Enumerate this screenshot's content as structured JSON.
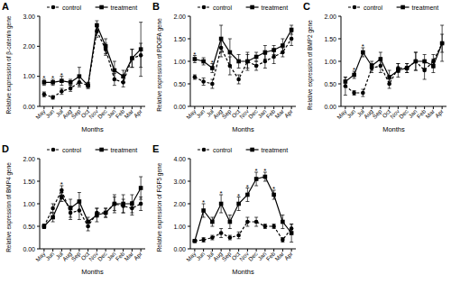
{
  "chart_data": [
    {
      "type": "line",
      "title": "A",
      "x_label": "Months",
      "y_label": "Relative expression of β-catenin gene",
      "categories": [
        "May",
        "Jun",
        "Jul",
        "Aug",
        "Sep",
        "Oct",
        "Nov",
        "Dec",
        "Jan",
        "Feb",
        "Mar",
        "Apr"
      ],
      "series": [
        {
          "name": "control",
          "color": "#000000",
          "line_style": "dashed",
          "marker": "circle",
          "values": [
            0.4,
            0.3,
            0.5,
            0.6,
            0.8,
            0.7,
            2.5,
            1.9,
            0.9,
            0.8,
            1.6,
            1.7
          ],
          "errors": [
            0.08,
            0.06,
            0.1,
            0.1,
            0.15,
            0.1,
            0.2,
            0.2,
            0.2,
            0.15,
            0.3,
            0.4
          ]
        },
        {
          "name": "treatment",
          "color": "#000000",
          "line_style": "solid",
          "marker": "square",
          "values": [
            0.8,
            0.8,
            0.85,
            0.8,
            1.0,
            0.7,
            2.7,
            2.0,
            1.2,
            1.0,
            1.6,
            1.9
          ],
          "errors": [
            0.1,
            0.1,
            0.15,
            0.1,
            0.3,
            0.1,
            0.15,
            0.25,
            0.3,
            0.2,
            0.3,
            0.9
          ]
        }
      ],
      "annotations": [
        {
          "text": "*",
          "x": "May"
        },
        {
          "text": "*",
          "x": "Jun"
        },
        {
          "text": "*",
          "x": "Jul"
        }
      ],
      "ylim": [
        0,
        3
      ],
      "yticks": [
        {
          "value": 0,
          "label": "0.00"
        },
        {
          "value": 1,
          "label": "1.00"
        },
        {
          "value": 2,
          "label": "2.00"
        },
        {
          "value": 3,
          "label": "3.00"
        }
      ],
      "legend": "top"
    },
    {
      "type": "line",
      "title": "B",
      "x_label": "Months",
      "y_label": "Relative expression of PDGFA gene",
      "categories": [
        "May",
        "Jun",
        "Jul",
        "Aug",
        "Sep",
        "Oct",
        "Nov",
        "Dec",
        "Jan",
        "Feb",
        "Mar",
        "Apr"
      ],
      "series": [
        {
          "name": "control",
          "color": "#000000",
          "line_style": "dashed",
          "marker": "circle",
          "values": [
            0.65,
            0.55,
            0.5,
            1.3,
            0.9,
            0.6,
            1.0,
            0.9,
            1.0,
            1.1,
            1.2,
            1.5
          ],
          "errors": [
            0.05,
            0.08,
            0.1,
            0.2,
            0.2,
            0.1,
            0.15,
            0.1,
            0.15,
            0.15,
            0.1,
            0.15
          ]
        },
        {
          "name": "treatment",
          "color": "#000000",
          "line_style": "solid",
          "marker": "square",
          "values": [
            1.05,
            1.0,
            0.85,
            1.5,
            1.2,
            1.0,
            1.0,
            1.1,
            1.2,
            1.25,
            1.35,
            1.7
          ],
          "errors": [
            0.08,
            0.08,
            0.1,
            0.3,
            0.3,
            0.15,
            0.2,
            0.1,
            0.15,
            0.1,
            0.15,
            0.1
          ]
        }
      ],
      "annotations": [
        {
          "text": "*",
          "x": "May"
        },
        {
          "text": "*",
          "x": "Jul"
        }
      ],
      "ylim": [
        0,
        2
      ],
      "yticks": [
        {
          "value": 0,
          "label": "0.00"
        },
        {
          "value": 0.5,
          "label": "0.50"
        },
        {
          "value": 1,
          "label": "1.00"
        },
        {
          "value": 1.5,
          "label": "1.50"
        },
        {
          "value": 2,
          "label": "2.00"
        }
      ],
      "legend": "top"
    },
    {
      "type": "line",
      "title": "C",
      "x_label": "Months",
      "y_label": "Relative expression of BMP2 gene",
      "categories": [
        "May",
        "Jun",
        "Jul",
        "Aug",
        "Sep",
        "Oct",
        "Nov",
        "Dec",
        "Jan",
        "Feb",
        "Mar",
        "Apr"
      ],
      "series": [
        {
          "name": "control",
          "color": "#000000",
          "line_style": "dashed",
          "marker": "circle",
          "values": [
            0.45,
            0.3,
            0.3,
            0.85,
            0.9,
            0.5,
            0.85,
            0.85,
            1.0,
            0.8,
            1.0,
            1.4
          ],
          "errors": [
            0.2,
            0.05,
            0.08,
            0.1,
            0.15,
            0.1,
            0.1,
            0.1,
            0.2,
            0.2,
            0.15,
            0.2
          ]
        },
        {
          "name": "treatment",
          "color": "#000000",
          "line_style": "solid",
          "marker": "square",
          "values": [
            0.55,
            0.7,
            1.2,
            0.9,
            1.05,
            0.65,
            0.8,
            0.85,
            1.0,
            1.0,
            0.9,
            1.4
          ],
          "errors": [
            0.1,
            0.08,
            0.1,
            0.1,
            0.15,
            0.15,
            0.15,
            0.1,
            0.2,
            0.15,
            0.15,
            0.4
          ]
        }
      ],
      "annotations": [
        {
          "text": "*",
          "x": "Jun"
        },
        {
          "text": "*",
          "x": "Jul"
        }
      ],
      "ylim": [
        0,
        2
      ],
      "yticks": [
        {
          "value": 0,
          "label": "0.00"
        },
        {
          "value": 0.5,
          "label": "0.50"
        },
        {
          "value": 1,
          "label": "1.00"
        },
        {
          "value": 1.5,
          "label": "1.50"
        },
        {
          "value": 2,
          "label": "2.00"
        }
      ],
      "legend": "top"
    },
    {
      "type": "line",
      "title": "D",
      "x_label": "Months",
      "y_label": "Relative expression of BMP4 gene",
      "categories": [
        "May",
        "Jun",
        "Jul",
        "Aug",
        "Sep",
        "Oct",
        "Nov",
        "Dec",
        "Jan",
        "Feb",
        "Mar",
        "Apr"
      ],
      "series": [
        {
          "name": "control",
          "color": "#000000",
          "line_style": "dashed",
          "marker": "circle",
          "values": [
            0.5,
            0.9,
            1.3,
            0.8,
            0.85,
            0.5,
            0.8,
            0.8,
            1.0,
            0.95,
            0.9,
            1.0
          ],
          "errors": [
            0.05,
            0.1,
            0.1,
            0.15,
            0.2,
            0.1,
            0.1,
            0.1,
            0.2,
            0.15,
            0.15,
            0.15
          ]
        },
        {
          "name": "treatment",
          "color": "#000000",
          "line_style": "solid",
          "marker": "square",
          "values": [
            0.5,
            0.7,
            1.15,
            0.9,
            1.05,
            0.6,
            0.75,
            0.8,
            1.0,
            1.0,
            1.0,
            1.35
          ],
          "errors": [
            0.05,
            0.1,
            0.1,
            0.2,
            0.2,
            0.1,
            0.15,
            0.1,
            0.15,
            0.2,
            0.2,
            0.25
          ]
        }
      ],
      "annotations": [
        {
          "text": "*",
          "x": "Jul"
        }
      ],
      "ylim": [
        0,
        2
      ],
      "yticks": [
        {
          "value": 0,
          "label": "0.00"
        },
        {
          "value": 0.5,
          "label": "0.50"
        },
        {
          "value": 1,
          "label": "1.00"
        },
        {
          "value": 1.5,
          "label": "1.50"
        },
        {
          "value": 2,
          "label": "2.00"
        }
      ],
      "legend": "top"
    },
    {
      "type": "line",
      "title": "E",
      "x_label": "Months",
      "y_label": "Relative expression of FGF5 gene",
      "categories": [
        "May",
        "Jun",
        "Jul",
        "Aug",
        "Sep",
        "Oct",
        "Nov",
        "Dec",
        "Jan",
        "Feb",
        "Mar",
        "Apr"
      ],
      "series": [
        {
          "name": "control",
          "color": "#000000",
          "line_style": "dashed",
          "marker": "circle",
          "values": [
            0.35,
            0.4,
            0.5,
            0.7,
            0.5,
            0.6,
            1.2,
            1.2,
            1.0,
            1.0,
            0.4,
            0.9
          ],
          "errors": [
            0.05,
            0.1,
            0.1,
            0.2,
            0.1,
            0.15,
            0.2,
            0.2,
            0.1,
            0.1,
            0.1,
            0.2
          ]
        },
        {
          "name": "treatment",
          "color": "#000000",
          "line_style": "solid",
          "marker": "square",
          "values": [
            0.35,
            1.7,
            1.2,
            2.0,
            1.2,
            2.0,
            2.4,
            3.1,
            3.2,
            2.4,
            1.2,
            0.7
          ],
          "errors": [
            0.05,
            0.3,
            0.2,
            0.4,
            0.3,
            0.3,
            0.3,
            0.3,
            0.2,
            0.2,
            0.3,
            0.4
          ]
        }
      ],
      "annotations": [
        {
          "text": "*",
          "x": "Jun"
        },
        {
          "text": "*",
          "x": "Aug"
        },
        {
          "text": "*",
          "x": "Oct"
        },
        {
          "text": "*",
          "x": "Nov"
        },
        {
          "text": "*",
          "x": "Dec"
        },
        {
          "text": "*",
          "x": "Jan"
        },
        {
          "text": "*",
          "x": "Feb"
        }
      ],
      "ylim": [
        0,
        4
      ],
      "yticks": [
        {
          "value": 0,
          "label": "0.00"
        },
        {
          "value": 1,
          "label": "1.00"
        },
        {
          "value": 2,
          "label": "2.00"
        },
        {
          "value": 3,
          "label": "3.00"
        },
        {
          "value": 4,
          "label": "4.00"
        }
      ],
      "legend": "top"
    }
  ]
}
